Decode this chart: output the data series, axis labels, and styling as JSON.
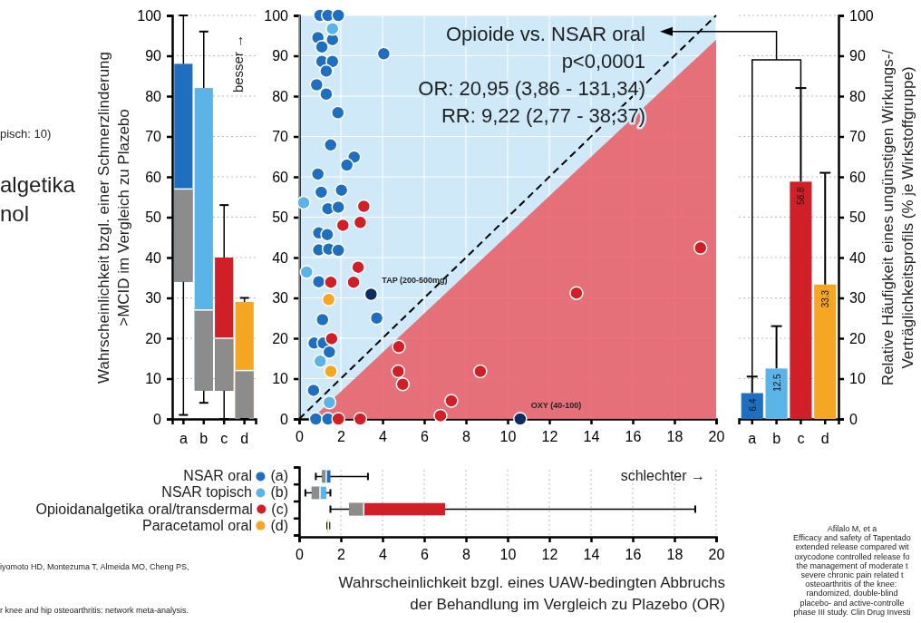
{
  "chart_data": [
    {
      "type": "box",
      "categories": [
        "a",
        "b",
        "c",
        "d"
      ],
      "colors": [
        "#1f6fc0",
        "#5ab4e8",
        "#d01f27",
        "#f5a623"
      ],
      "boxes": [
        {
          "low": 1,
          "q1": 34,
          "median": 57,
          "q3": 88,
          "high": 100
        },
        {
          "low": 4,
          "q1": 7,
          "median": 27,
          "q3": 82,
          "high": 96
        },
        {
          "low": 0,
          "q1": 7,
          "median": 20,
          "q3": 40,
          "high": 53
        },
        {
          "low": 0,
          "q1": 0,
          "median": 12,
          "q3": 29,
          "high": 30
        }
      ],
      "ylim": [
        0,
        100
      ],
      "yticks": [
        0,
        10,
        20,
        30,
        40,
        50,
        60,
        70,
        80,
        90,
        100
      ],
      "grid": "y",
      "ylabel": "Wahrscheinlichkeit bzgl. einer Schmerzlinderung\n>MCID im Vergleich zu Plazebo",
      "annotations": [
        "besser →",
        "pisch: 10)",
        "algetika",
        "nol",
        "iyomoto HD, Montezuma T, Almeida MO, Cheng PS,",
        "r knee and hip osteoarthritis: network meta-analysis."
      ]
    },
    {
      "type": "scatter",
      "xlim": [
        0,
        20
      ],
      "xticks": [
        0,
        2,
        4,
        6,
        8,
        10,
        12,
        14,
        16,
        18,
        20
      ],
      "ylim": [
        0,
        100
      ],
      "yticks": [
        0,
        10,
        20,
        30,
        40,
        50,
        60,
        70,
        80,
        90,
        100
      ],
      "grid": true,
      "marker": "circle",
      "series": [
        {
          "type": "area",
          "color": "#e8636b",
          "marker": "none",
          "x": [
            0.6,
            20
          ],
          "values": [
            0,
            94
          ]
        },
        {
          "type": "line",
          "color": "#000000",
          "marker": "none",
          "line_style": "dashed",
          "x": [
            0,
            20
          ],
          "values": [
            0,
            100
          ]
        },
        {
          "color": "#1f6fc0",
          "x": [
            1.0,
            1.38,
            1.88,
            0.9,
            1.09,
            1.6,
            4.06,
            1.09,
            1.6,
            1.3,
            0.84,
            1.3,
            1.86,
            1.51,
            2.64,
            2.29,
            0.9,
            1.06,
            2.03,
            1.38,
            1.88,
            0.94,
            1.35,
            0.94,
            1.42,
            1.88,
            0.94,
            1.12,
            3.72,
            0.72,
            1.16,
            1.45,
            0.69,
            0.8,
            1.38
          ],
          "values": [
            100,
            100,
            100,
            94.5,
            92.2,
            94,
            90.5,
            88.6,
            88.6,
            86.2,
            82.8,
            80.5,
            75.9,
            67.9,
            64.9,
            62.9,
            60.7,
            56.2,
            56.7,
            52.1,
            52.5,
            46.1,
            45.7,
            41.9,
            42.1,
            41.8,
            34,
            24.6,
            25,
            18.8,
            18.8,
            16.6,
            7.1,
            0,
            0
          ]
        },
        {
          "color": "#5ab4e8",
          "x": [
            1.6,
            0.22,
            0.36,
            1.01,
            1.45
          ],
          "values": [
            96.7,
            53.6,
            36.4,
            14.3,
            4.1
          ]
        },
        {
          "color": "#d01f27",
          "x": [
            3.1,
            2.1,
            2.93,
            2.83,
            2.61,
            1.52,
            1.56,
            19.25,
            13.3,
            4.78,
            4.75,
            4.97,
            8.69,
            7.3,
            6.78,
            1.88,
            2.93
          ],
          "values": [
            52.7,
            48,
            48.7,
            37.6,
            33.9,
            33.9,
            19.9,
            42.4,
            31.2,
            17.9,
            11.8,
            8.6,
            11.8,
            4.5,
            0.8,
            0,
            0
          ]
        },
        {
          "color": "#f5a623",
          "x": [
            1.42,
            1.52
          ],
          "values": [
            29.6,
            11.8
          ]
        },
        {
          "color": "#0d2d5e",
          "x": [
            3.45,
            10.6
          ],
          "values": [
            30.9,
            0
          ]
        }
      ],
      "annotations": [
        "Opioide vs. NSAR oral",
        "p<0,0001",
        "OR: 20,95 (3,86 - 131,34)",
        "RR: 9,22 (2,77 - 38,37)",
        {
          "text": "TAP (200-500mg)",
          "x": 3.45,
          "y": 30.9
        },
        {
          "text": "OXY (40-100)",
          "x": 10.6,
          "y": 0
        }
      ]
    },
    {
      "type": "bar",
      "categories": [
        "a",
        "b",
        "c",
        "d"
      ],
      "values": [
        6.4,
        12.5,
        58.8,
        33.3
      ],
      "colors": [
        "#1f6fc0",
        "#5ab4e8",
        "#d01f27",
        "#f5a623"
      ],
      "errors": [
        [
          6.4,
          10.5
        ],
        [
          12.5,
          23
        ],
        [
          58.8,
          82
        ],
        [
          33.3,
          61
        ]
      ],
      "data_labels": true,
      "ylim": [
        0,
        100
      ],
      "yticks": [
        0,
        10,
        20,
        30,
        40,
        50,
        60,
        70,
        80,
        90,
        100
      ],
      "grid": "y",
      "ylabel": "Relative Häufigkeit eines ungünstigen Wirkungs-/\nVerträglichkeitsprofils (% je Wirkstoffgruppe)",
      "annotations": [
        "Afilalo M, et a\nEfficacy and safety of Tapentado\nextended release compared wit\noxycodone controlled release fo\nthe management of moderate t\nsevere chronic pain related t\nosteoarthritis of the knee: \nrandomized, double-blind\nplacebo- and active-controlle\nphase III study. Clin Drug Investi"
      ]
    },
    {
      "type": "box",
      "orientation": "horizontal",
      "categories": [
        "NSAR oral (a)",
        "NSAR topisch (b)",
        "Opioidanalgetika oral/transdermal (c)",
        "Paracetamol oral (d)"
      ],
      "colors": [
        "#1f6fc0",
        "#5ab4e8",
        "#d01f27",
        "#f5a623"
      ],
      "boxes": [
        {
          "low": 0.8,
          "q1": 1.1,
          "median": 1.3,
          "q3": 1.5,
          "high": 3.3
        },
        {
          "low": 0.3,
          "q1": 0.6,
          "median": 1.0,
          "q3": 1.3,
          "high": 1.5
        },
        {
          "low": 1.5,
          "q1": 2.4,
          "median": 3.1,
          "q3": 7.0,
          "high": 19.0
        },
        {
          "low": 1.35,
          "q1": 1.35,
          "median": 1.4,
          "q3": 1.45,
          "high": 1.45
        }
      ],
      "xlim": [
        0,
        20
      ],
      "xticks": [
        0,
        2,
        4,
        6,
        8,
        10,
        12,
        14,
        16,
        18,
        20
      ],
      "grid": "x",
      "xlabel": "Wahrscheinlichkeit bzgl. eines UAW-bedingten Abbruchs\nder Behandlung im Vergleich zu Plazebo (OR)",
      "annotations": [
        "schlechter →"
      ]
    }
  ]
}
